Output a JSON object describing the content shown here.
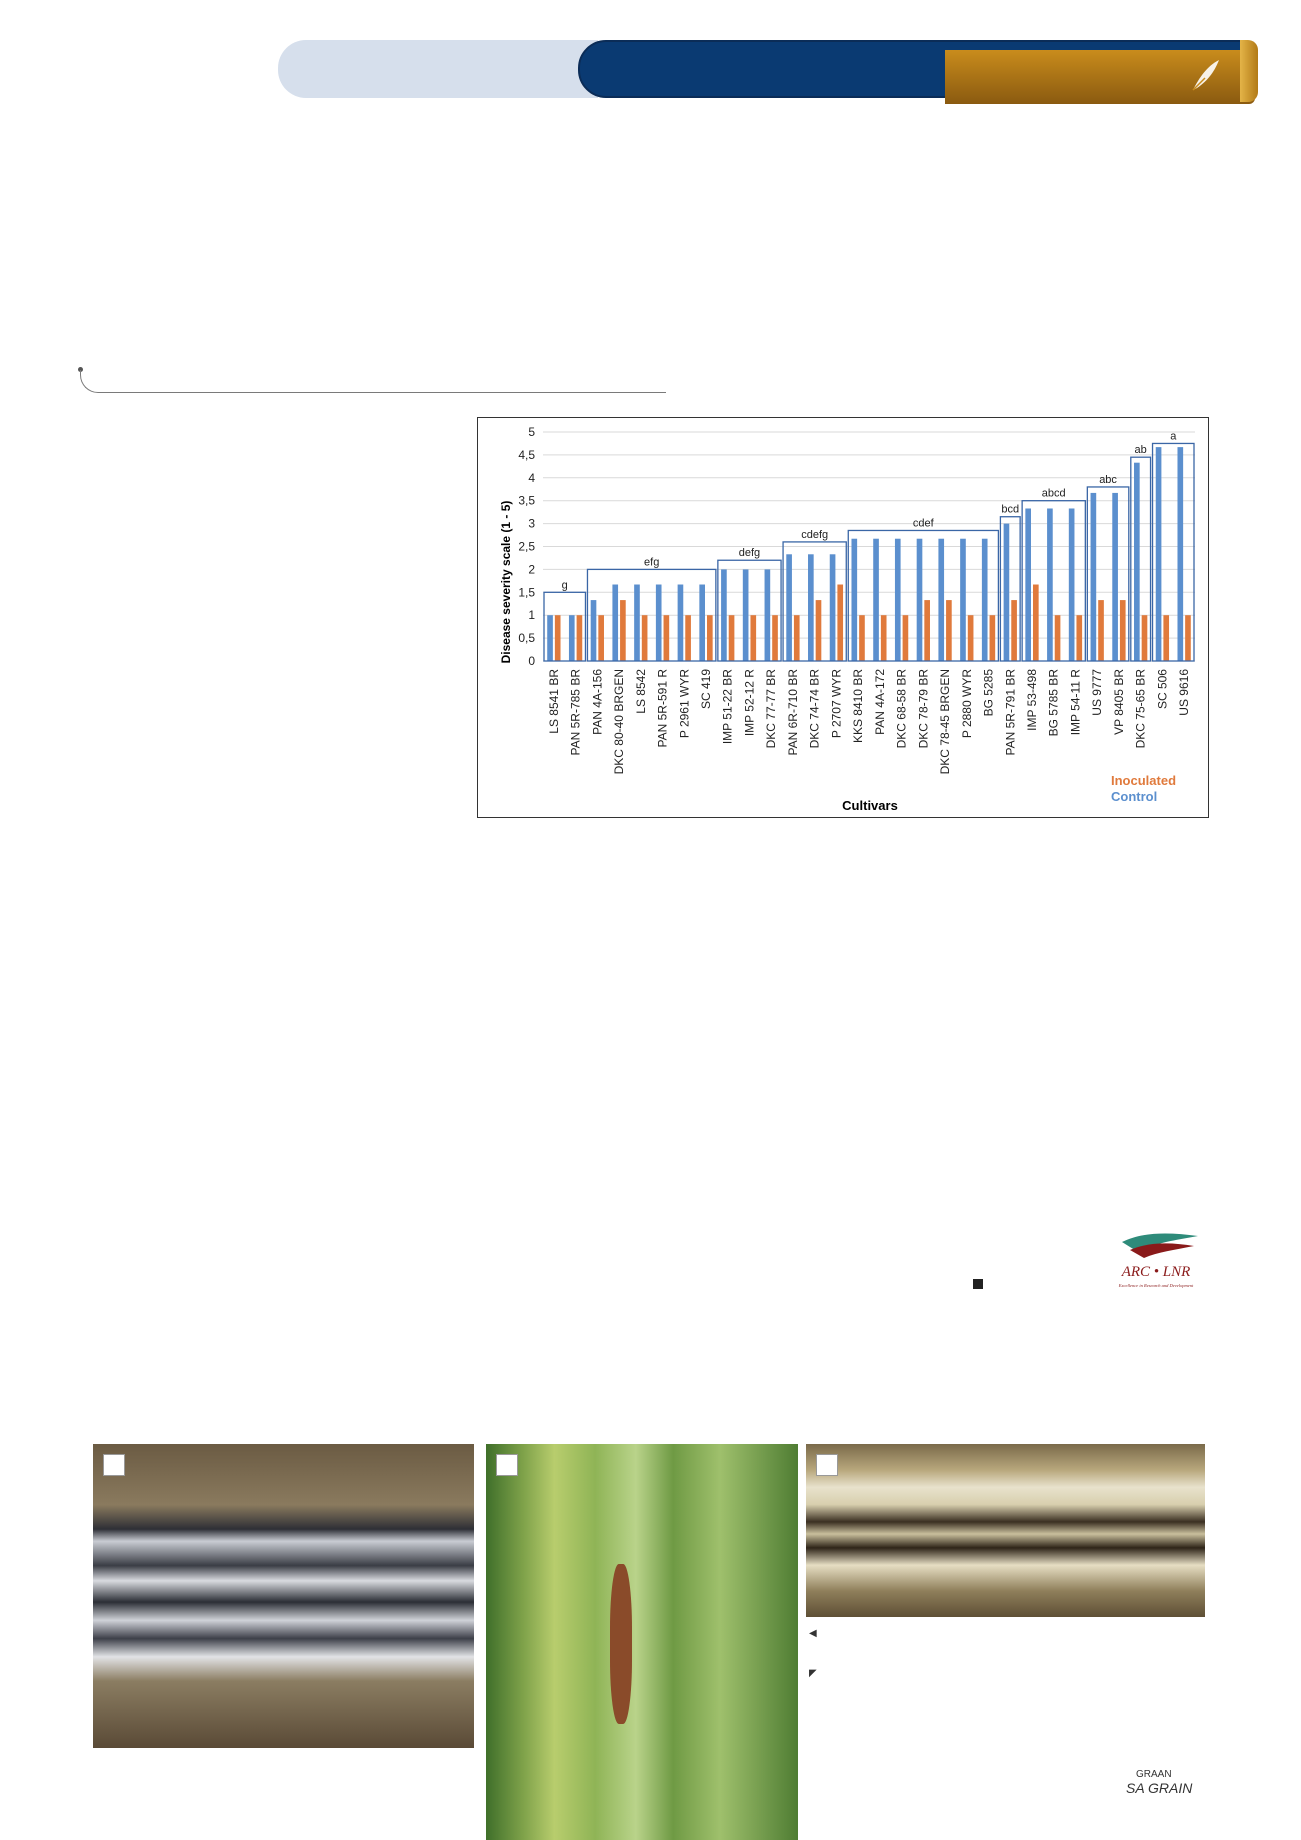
{
  "header": {
    "brand_colors": {
      "light": "#d6dfec",
      "blue": "#0a3a72",
      "gold": "#c98c1c"
    }
  },
  "chart_data": {
    "type": "bar",
    "xlabel": "Cultivars",
    "ylabel": "Disease severity scale  (1 - 5)",
    "ylim": [
      0,
      5
    ],
    "yticks": [
      "0",
      "0,5",
      "1",
      "1,5",
      "2",
      "2,5",
      "3",
      "3,5",
      "4",
      "4,5",
      "5"
    ],
    "grid": true,
    "legend_placement": "bottom-right",
    "categories": [
      "LS 8541 BR",
      "PAN 5R-785 BR",
      "PAN 4A-156",
      "DKC 80-40 BRGEN",
      "LS 8542",
      "PAN 5R-591 R",
      "P 2961 WYR",
      "SC 419",
      "IMP 51-22 BR",
      "IMP 52-12 R",
      "DKC 77-77 BR",
      "PAN 6R-710 BR",
      "DKC 74-74 BR",
      "P 2707 WYR",
      "KKS 8410 BR",
      "PAN 4A-172",
      "DKC 68-58 BR",
      "DKC 78-79 BR",
      "DKC 78-45 BRGEN",
      "P 2880 WYR",
      "BG 5285",
      "PAN 5R-791 BR",
      "IMP 53-498",
      "BG 5785 BR",
      "IMP 54-11 R",
      "US 9777",
      "VP 8405 BR",
      "DKC 75-65 BR",
      "SC 506",
      "US 9616"
    ],
    "series": [
      {
        "name": "Control",
        "color": "#5b8fce",
        "values": [
          1,
          1,
          1.33,
          1.67,
          1.67,
          1.67,
          1.67,
          1.67,
          2,
          2,
          2,
          2.33,
          2.33,
          2.33,
          2.67,
          2.67,
          2.67,
          2.67,
          2.67,
          2.67,
          2.67,
          3,
          3.33,
          3.33,
          3.33,
          3.67,
          3.67,
          4.33,
          4.67,
          4.67
        ]
      },
      {
        "name": "Inoculated",
        "color": "#e07a3c",
        "values": [
          1,
          1,
          1,
          1.33,
          1,
          1,
          1,
          1,
          1,
          1,
          1,
          1,
          1.33,
          1.67,
          1,
          1,
          1,
          1.33,
          1.33,
          1,
          1,
          1.33,
          1.67,
          1,
          1,
          1.33,
          1.33,
          1,
          1,
          1
        ]
      }
    ],
    "groups": [
      {
        "label": "g",
        "start": 0,
        "end": 1,
        "level": 1.5
      },
      {
        "label": "efg",
        "start": 2,
        "end": 7,
        "level": 2
      },
      {
        "label": "defg",
        "start": 8,
        "end": 10,
        "level": 2.2
      },
      {
        "label": "cdefg",
        "start": 11,
        "end": 13,
        "level": 2.6
      },
      {
        "label": "cdef",
        "start": 14,
        "end": 20,
        "level": 2.85
      },
      {
        "label": "bcd",
        "start": 21,
        "end": 21,
        "level": 3.15
      },
      {
        "label": "abcd",
        "start": 22,
        "end": 24,
        "level": 3.5
      },
      {
        "label": "abc",
        "start": 25,
        "end": 26,
        "level": 3.8
      },
      {
        "label": "ab",
        "start": 27,
        "end": 27,
        "level": 4.45
      },
      {
        "label": "a",
        "start": 28,
        "end": 29,
        "level": 4.75
      }
    ]
  },
  "logos": {
    "arc": {
      "main": "ARC • LNR",
      "sub": "Excellence in Research and Development"
    },
    "sa_grain": {
      "top": "GRAAN",
      "main": "SA GRAIN"
    }
  },
  "icons": {
    "photo_tag": "white-square-icon",
    "bullet": "black-square-icon",
    "left_arrow": "left-triangle-icon",
    "corner_arrow": "corner-arrow-icon"
  }
}
